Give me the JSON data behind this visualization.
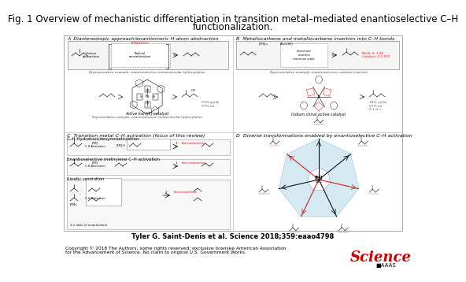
{
  "title_line1": "Fig. 1 Overview of mechanistic differentiation in transition metal–mediated enantioselective C–H",
  "title_line2": "functionalization.",
  "title_fontsize": 8.5,
  "citation": "Tyler G. Saint-Denis et al. Science 2018;359:eaao4798",
  "citation_fontsize": 6.0,
  "copyright": "Copyright © 2018 The Authors, some rights reserved; exclusive licensee American Association\nfor the Advancement of Science. No claim to original U.S. Government Works.",
  "copyright_fontsize": 4.2,
  "science_color": "#cc0000",
  "science_fontsize": 13,
  "panel_A_label": "A  Diastereotopic approach/enantiomeric H-atom abstraction",
  "panel_B_label": "B  Metallocarbene and metallocarbene insertion into C–H bonds",
  "panel_C_label": "C  Transition metal C–H activation (focus of this review)",
  "panel_D_label": "D  Diverse transformations enabled by enantioselective C–H activation",
  "panel_label_fontsize": 4.5,
  "sub_C1": "C–H Hydration/desymmetrization",
  "sub_C2": "Enantioselective methylene C–H activation",
  "sub_C3": "Kinetic resolution",
  "sub_fontsize": 4.0,
  "bg": "#ffffff",
  "divider": "#000000",
  "box_light_blue": "#cce5f0",
  "red": "#cc2222",
  "black": "#111111",
  "gray_box": "#f2f2f2",
  "rep_ex_A": "Representative example: enantioselective intramolecular hydroxylation",
  "rep_ex_B": "Representative example: enantioselective carbene insertion",
  "active_cat_A": "Active Iron(III) catalyst",
  "active_cat_B": "Iridium chiral active catalyst",
  "yield_A": "67% yield\n97% ee",
  "yield_B": "30% yield\n57% ee\n0.1 d +",
  "selectivity_B_red1": "Rh(II): S, 1-98",
  "selectivity_B_red2": "Catalysis: 0.1-500"
}
